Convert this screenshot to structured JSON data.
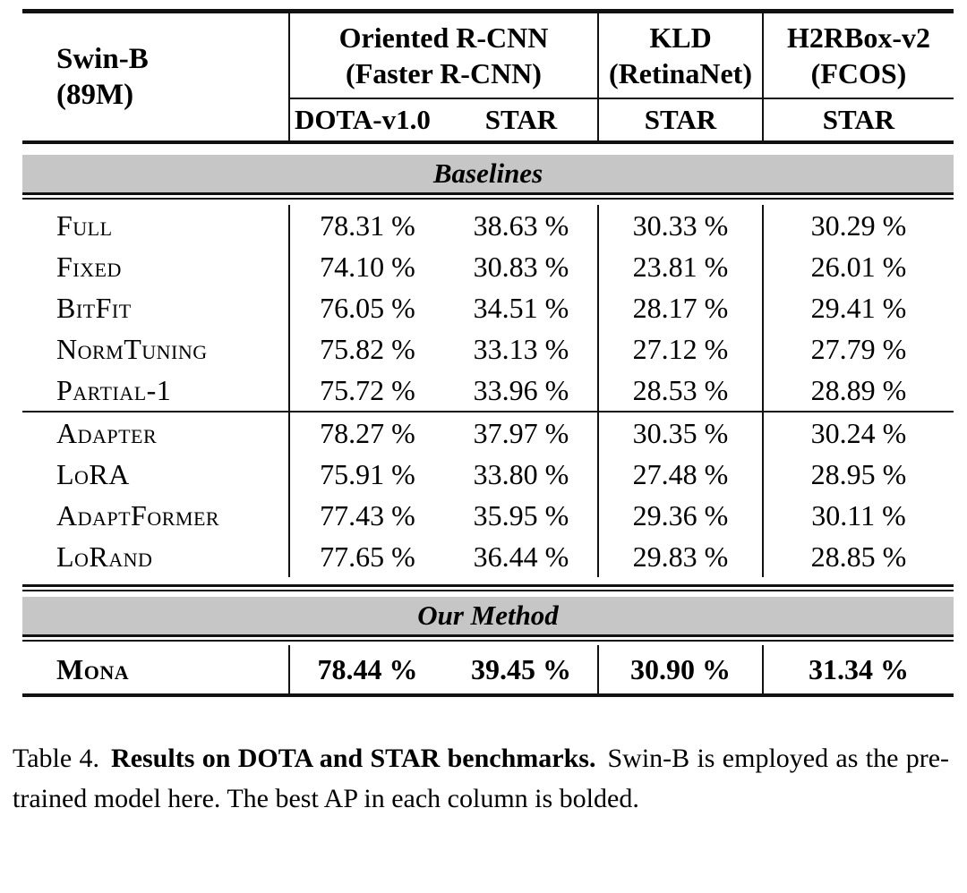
{
  "table": {
    "header": {
      "model_line1": "Swin-B",
      "model_line2": "(89M)",
      "group1_line1": "Oriented R-CNN",
      "group1_line2": "(Faster R-CNN)",
      "group2_line1": "KLD",
      "group2_line2": "(RetinaNet)",
      "group3_line1": "H2RBox-v2",
      "group3_line2": "(FCOS)",
      "sub1": "DOTA-v1.0",
      "sub2": "STAR",
      "sub3": "STAR",
      "sub4": "STAR"
    },
    "sections": {
      "baselines_label": "Baselines",
      "our_method_label": "Our Method"
    },
    "baseline_rows": [
      {
        "label": "Full",
        "v": [
          "78.31 %",
          "38.63 %",
          "30.33 %",
          "30.29 %"
        ]
      },
      {
        "label": "Fixed",
        "v": [
          "74.10 %",
          "30.83 %",
          "23.81 %",
          "26.01 %"
        ]
      },
      {
        "label": "BitFit",
        "v": [
          "76.05 %",
          "34.51 %",
          "28.17 %",
          "29.41 %"
        ]
      },
      {
        "label": "NormTuning",
        "v": [
          "75.82 %",
          "33.13 %",
          "27.12 %",
          "27.79 %"
        ]
      },
      {
        "label": "Partial-1",
        "v": [
          "75.72 %",
          "33.96 %",
          "28.53 %",
          "28.89 %"
        ]
      }
    ],
    "peft_rows": [
      {
        "label": "Adapter",
        "v": [
          "78.27 %",
          "37.97 %",
          "30.35 %",
          "30.24 %"
        ]
      },
      {
        "label": "LoRA",
        "v": [
          "75.91 %",
          "33.80 %",
          "27.48 %",
          "28.95 %"
        ]
      },
      {
        "label": "AdaptFormer",
        "v": [
          "77.43 %",
          "35.95 %",
          "29.36 %",
          "30.11 %"
        ]
      },
      {
        "label": "LoRand",
        "v": [
          "77.65 %",
          "36.44 %",
          "29.83 %",
          "28.85 %"
        ]
      }
    ],
    "our_rows": [
      {
        "label": "Mona",
        "v": [
          "78.44 %",
          "39.45 %",
          "30.90 %",
          "31.34 %"
        ]
      }
    ]
  },
  "caption": {
    "prefix": "Table 4.",
    "bold": "Results on DOTA and STAR benchmarks.",
    "rest": "Swin-B is employed as the pre-trained model here. The best AP in each column is bolded."
  },
  "colors": {
    "band_bg": "#c6c6c6",
    "rule": "#111111",
    "text": "#000000"
  }
}
